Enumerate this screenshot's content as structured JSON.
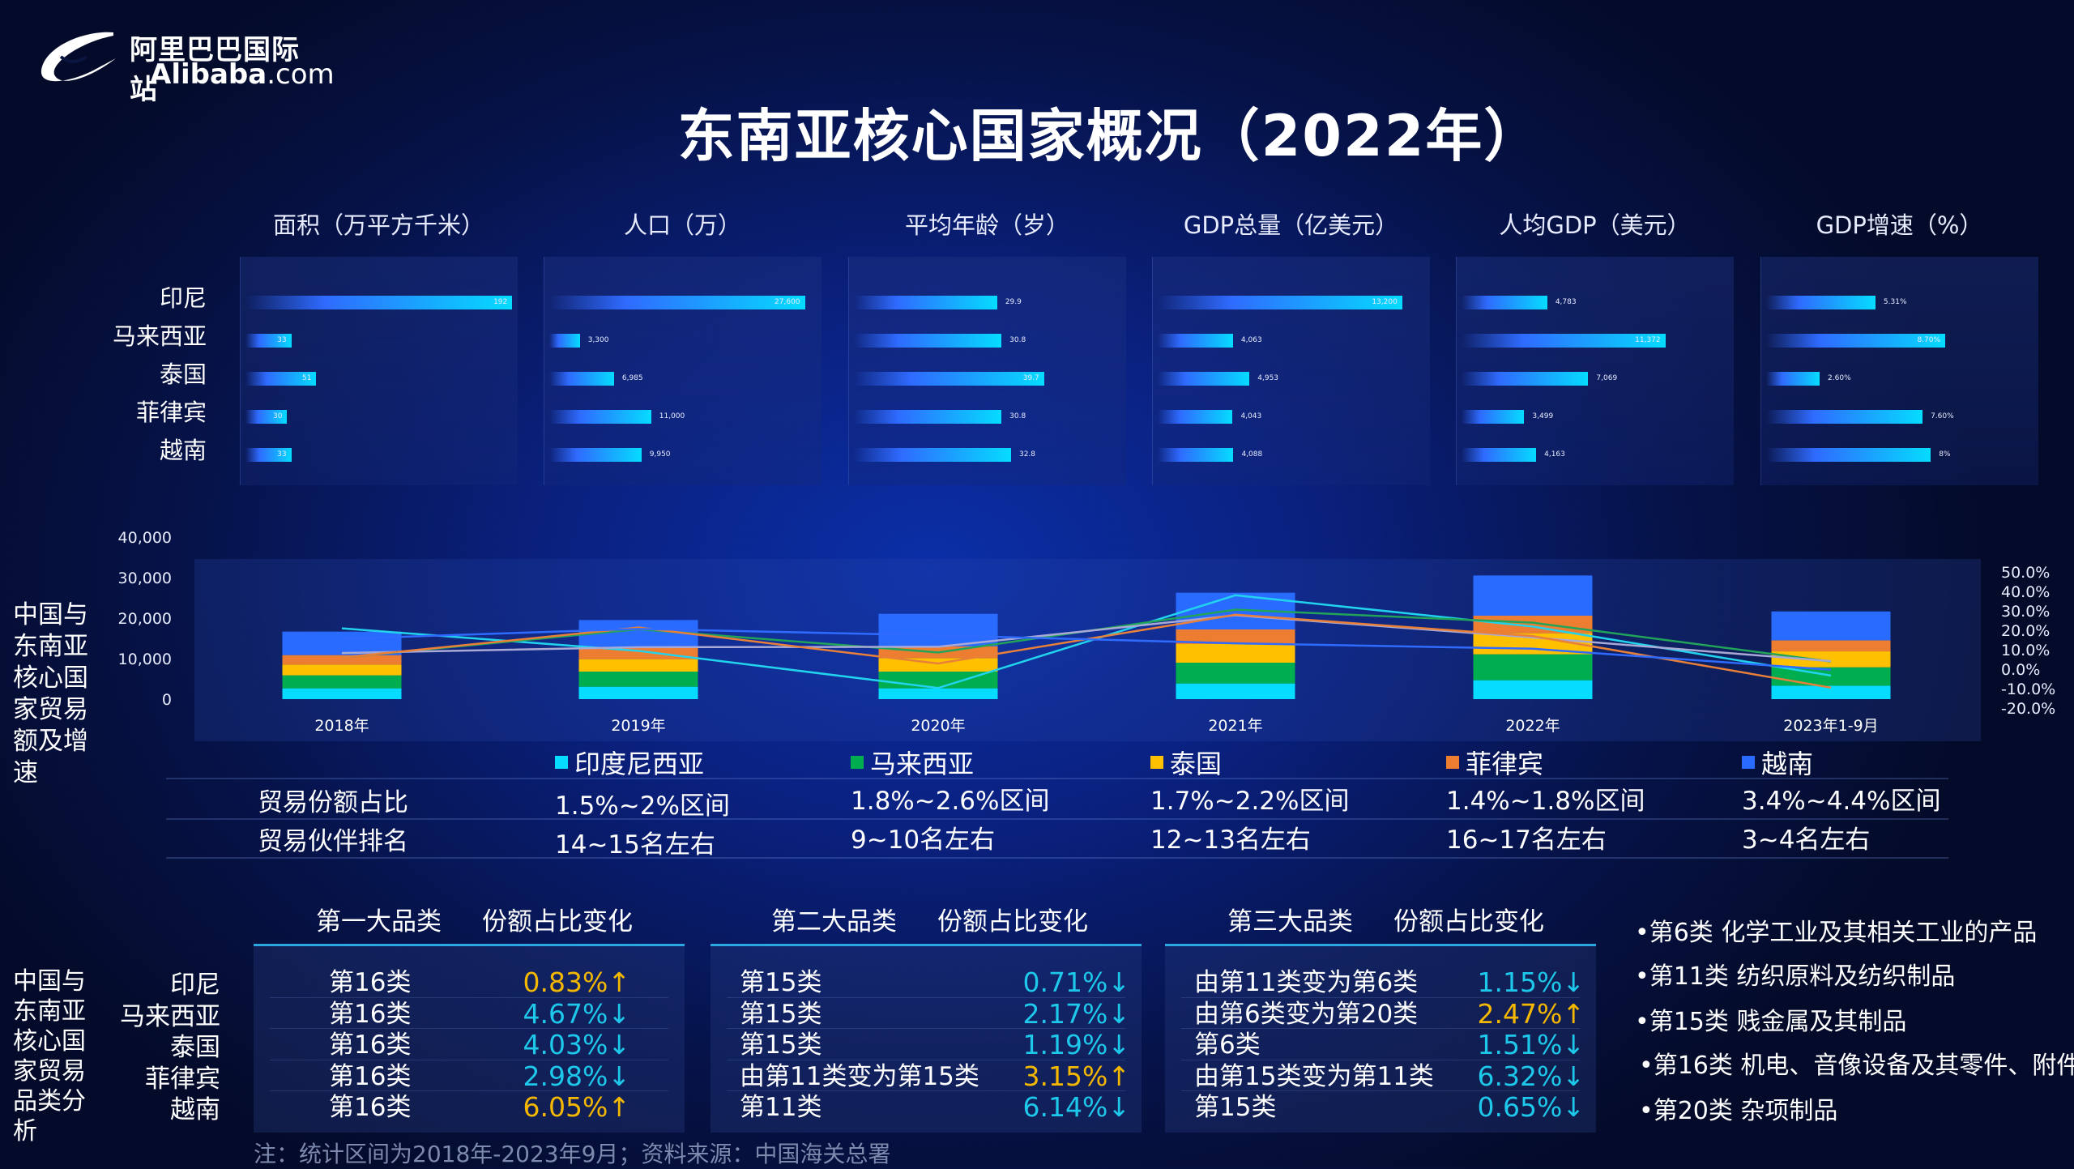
{
  "logo": {
    "cn": "阿里巴巴国际站",
    "en": "Alibaba",
    "en_suffix": ".com"
  },
  "title": "东南亚核心国家概况（2022年）",
  "countries": [
    "印尼",
    "马来西亚",
    "泰国",
    "菲律宾",
    "越南"
  ],
  "chart_data": [
    {
      "type": "bar",
      "orientation": "horizontal",
      "title": "面积（万平方千米）",
      "categories": [
        "印尼",
        "马来西亚",
        "泰国",
        "菲律宾",
        "越南"
      ],
      "values": [
        192,
        33,
        51,
        30,
        33
      ],
      "labels": [
        "192",
        "33",
        "51",
        "30",
        "33"
      ]
    },
    {
      "type": "bar",
      "orientation": "horizontal",
      "title": "人口（万）",
      "categories": [
        "印尼",
        "马来西亚",
        "泰国",
        "菲律宾",
        "越南"
      ],
      "values": [
        27600,
        3300,
        6985,
        11000,
        9950
      ],
      "labels": [
        "27,600",
        "3,300",
        "6,985",
        "11,000",
        "9,950"
      ]
    },
    {
      "type": "bar",
      "orientation": "horizontal",
      "title": "平均年龄（岁）",
      "categories": [
        "印尼",
        "马来西亚",
        "泰国",
        "菲律宾",
        "越南"
      ],
      "values": [
        29.9,
        30.8,
        39.7,
        30.8,
        32.8
      ],
      "labels": [
        "29.9",
        "30.8",
        "39.7",
        "30.8",
        "32.8"
      ]
    },
    {
      "type": "bar",
      "orientation": "horizontal",
      "title": "GDP总量（亿美元）",
      "categories": [
        "印尼",
        "马来西亚",
        "泰国",
        "菲律宾",
        "越南"
      ],
      "values": [
        13200,
        4063,
        4953,
        4043,
        4088
      ],
      "labels": [
        "13,200",
        "4,063",
        "4,953",
        "4,043",
        "4,088"
      ]
    },
    {
      "type": "bar",
      "orientation": "horizontal",
      "title": "人均GDP（美元）",
      "categories": [
        "印尼",
        "马来西亚",
        "泰国",
        "菲律宾",
        "越南"
      ],
      "values": [
        4783,
        11372,
        7069,
        3499,
        4163
      ],
      "labels": [
        "4,783",
        "11,372",
        "7,069",
        "3,499",
        "4,163"
      ]
    },
    {
      "type": "bar",
      "orientation": "horizontal",
      "title": "GDP增速（%）",
      "categories": [
        "印尼",
        "马来西亚",
        "泰国",
        "菲律宾",
        "越南"
      ],
      "values": [
        5.31,
        8.7,
        2.6,
        7.6,
        8
      ],
      "labels": [
        "5.31%",
        "8.70%",
        "2.60%",
        "7.60%",
        "8%"
      ]
    },
    {
      "type": "bar+line",
      "stacked": true,
      "title": "中国与东南亚核心国家贸易额及增速",
      "categories": [
        "2018年",
        "2019年",
        "2020年",
        "2021年",
        "2022年",
        "2023年1-9月"
      ],
      "y_left": {
        "ticks": [
          "0",
          "10,000",
          "20,000",
          "30,000",
          "40,000"
        ],
        "range": [
          0,
          40000
        ]
      },
      "y_right": {
        "ticks": [
          "50.0%",
          "40.0%",
          "30.0%",
          "20.0%",
          "10.0%",
          "0.0%",
          "-10.0%",
          "-20.0%"
        ],
        "range": [
          -20,
          50
        ]
      },
      "legend_position": "bottom",
      "series": [
        {
          "name": "印度尼西亚",
          "color": "#05dcff",
          "values": [
            2670,
            3070,
            2670,
            3870,
            4670,
            3330
          ],
          "growth": [
            21,
            9.4,
            -9.7,
            38,
            21.9,
            -3.3
          ],
          "line_color": "#22d3ee"
        },
        {
          "name": "马来西亚",
          "color": "#00ad4f",
          "values": [
            3200,
            3730,
            4130,
            5130,
            6400,
            4530
          ],
          "growth": [
            6,
            20.5,
            8.6,
            30.6,
            23.9,
            3.9
          ],
          "line_color": "#21a35a"
        },
        {
          "name": "泰国",
          "color": "#ffc000",
          "values": [
            2670,
            3070,
            3330,
            4600,
            5200,
            3930
          ],
          "growth": [
            8.3,
            11.3,
            11.5,
            27.7,
            16.3,
            4.1
          ],
          "line_color": "#a9a9d6"
        },
        {
          "name": "菲律宾",
          "color": "#ed7d31",
          "values": [
            2330,
            2930,
            2930,
            3600,
            4330,
            2730
          ],
          "growth": [
            6,
            21.4,
            2.9,
            28,
            17,
            -9.5
          ],
          "line_color": "#e8803a"
        },
        {
          "name": "越南",
          "color": "#2a6bff",
          "values": [
            5800,
            6730,
            8000,
            9070,
            9930,
            7130
          ],
          "growth": [
            15.6,
            20.7,
            17.4,
            13.3,
            10.5,
            -0.3
          ],
          "line_color": "#2f6bff"
        }
      ]
    }
  ],
  "trade_table": {
    "rows": [
      {
        "label": "贸易份额占比",
        "values": [
          "1.5%~2%区间",
          "1.8%~2.6%区间",
          "1.7%~2.2%区间",
          "1.4%~1.8%区间",
          "3.4%~4.4%区间"
        ]
      },
      {
        "label": "贸易伙伴排名",
        "values": [
          "14~15名左右",
          "9~10名左右",
          "12~13名左右",
          "16~17名左右",
          "3~4名左右"
        ]
      }
    ]
  },
  "side_labels": {
    "trade": "中国与东南亚核心国家贸易额及增速",
    "category": "中国与东南亚核心国家贸易品类分析"
  },
  "category_tables": [
    {
      "h1": "第一大品类",
      "h2": "份额占比变化",
      "rows": [
        {
          "cat": "第16类",
          "chg": "0.83%↑",
          "dir": "up"
        },
        {
          "cat": "第16类",
          "chg": "4.67%↓",
          "dir": "down"
        },
        {
          "cat": "第16类",
          "chg": "4.03%↓",
          "dir": "down"
        },
        {
          "cat": "第16类",
          "chg": "2.98%↓",
          "dir": "down"
        },
        {
          "cat": "第16类",
          "chg": "6.05%↑",
          "dir": "up"
        }
      ]
    },
    {
      "h1": "第二大品类",
      "h2": "份额占比变化",
      "rows": [
        {
          "cat": "第15类",
          "chg": "0.71%↓",
          "dir": "down"
        },
        {
          "cat": "第15类",
          "chg": "2.17%↓",
          "dir": "down"
        },
        {
          "cat": "第15类",
          "chg": "1.19%↓",
          "dir": "down"
        },
        {
          "cat": "由第11类变为第15类",
          "chg": "3.15%↑",
          "dir": "up"
        },
        {
          "cat": "第11类",
          "chg": "6.14%↓",
          "dir": "down"
        }
      ]
    },
    {
      "h1": "第三大品类",
      "h2": "份额占比变化",
      "rows": [
        {
          "cat": "由第11类变为第6类",
          "chg": "1.15%↓",
          "dir": "down"
        },
        {
          "cat": "由第6类变为第20类",
          "chg": "2.47%↑",
          "dir": "up"
        },
        {
          "cat": "第6类",
          "chg": "1.51%↓",
          "dir": "down"
        },
        {
          "cat": "由第15类变为第11类",
          "chg": "6.32%↓",
          "dir": "down"
        },
        {
          "cat": "第15类",
          "chg": "0.65%↓",
          "dir": "down"
        }
      ]
    }
  ],
  "category_legend": [
    "•第6类 化学工业及其相关工业的产品",
    "•第11类 纺织原料及纺织制品",
    "•第15类 贱金属及其制品",
    "•第16类 机电、音像设备及其零件、附件",
    "•第20类 杂项制品"
  ],
  "note": "注：统计区间为2018年-2023年9月；资料来源：中国海关总署"
}
